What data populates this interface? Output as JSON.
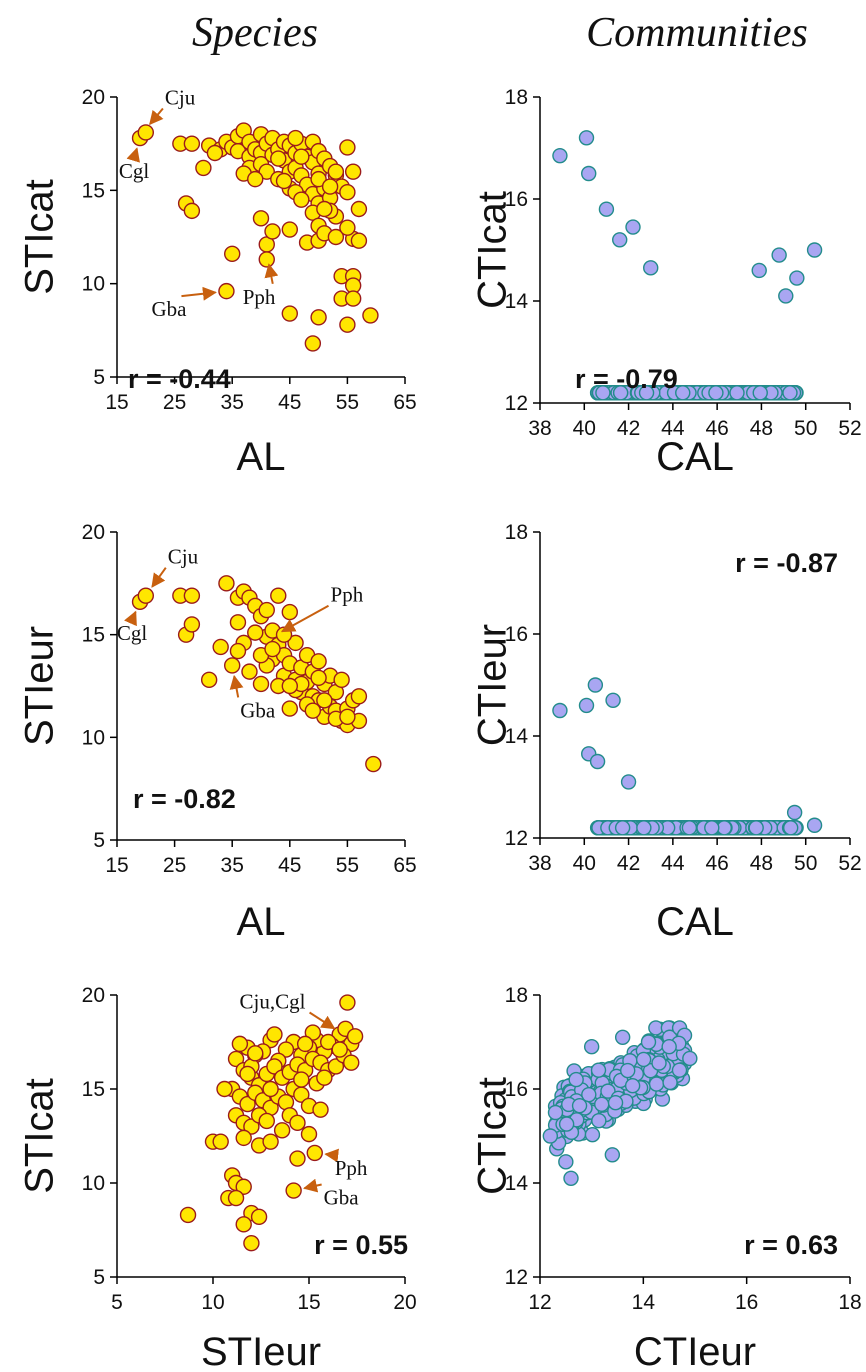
{
  "column_titles": {
    "species": "Species",
    "communities": "Communities"
  },
  "colors": {
    "species_fill": "#FFE600",
    "species_stroke": "#9B1B1B",
    "community_fill": "#A9A6F2",
    "community_stroke": "#238C8C",
    "arrow": "#C8600F"
  },
  "chart_data": [
    {
      "id": "p1",
      "type": "scatter",
      "column": "Species",
      "xlabel": "AL",
      "ylabel": "STIcat",
      "xlim": [
        15,
        65
      ],
      "ylim": [
        5,
        20
      ],
      "xticks": [
        15,
        25,
        35,
        45,
        55,
        65
      ],
      "yticks": [
        5,
        10,
        15,
        20
      ],
      "r_label": "r = -0.44",
      "annotations": [
        {
          "text": "Cju",
          "x": 19.5,
          "y": 18.1
        },
        {
          "text": "Cgl",
          "x": 19,
          "y": 17.8
        },
        {
          "text": "Gba",
          "x": 34,
          "y": 9.6
        },
        {
          "text": "Pph",
          "x": 41,
          "y": 11.6
        }
      ],
      "points": [
        [
          19,
          17.8
        ],
        [
          20,
          18.1
        ],
        [
          26,
          17.5
        ],
        [
          28,
          17.5
        ],
        [
          30,
          16.2
        ],
        [
          31,
          17.4
        ],
        [
          27,
          14.3
        ],
        [
          28,
          13.9
        ],
        [
          33,
          17.2
        ],
        [
          34,
          17.6
        ],
        [
          35,
          17.3
        ],
        [
          36,
          17.1
        ],
        [
          36,
          17.9
        ],
        [
          37,
          18.2
        ],
        [
          38,
          16.8
        ],
        [
          38,
          16.2
        ],
        [
          38,
          17.6
        ],
        [
          39,
          17.2
        ],
        [
          40,
          17.0
        ],
        [
          40,
          16.4
        ],
        [
          40,
          18.0
        ],
        [
          41,
          17.5
        ],
        [
          41,
          16.0
        ],
        [
          42,
          17.8
        ],
        [
          42,
          16.9
        ],
        [
          43,
          17.2
        ],
        [
          43,
          15.6
        ],
        [
          44,
          17.6
        ],
        [
          44,
          16.6
        ],
        [
          45,
          17.4
        ],
        [
          45,
          16.0
        ],
        [
          45,
          15.1
        ],
        [
          46,
          17.0
        ],
        [
          46,
          16.2
        ],
        [
          47,
          17.5
        ],
        [
          47,
          15.8
        ],
        [
          48,
          16.8
        ],
        [
          48,
          15.3
        ],
        [
          49,
          17.6
        ],
        [
          49,
          16.5
        ],
        [
          49,
          14.8
        ],
        [
          50,
          17.1
        ],
        [
          50,
          15.9
        ],
        [
          50,
          14.3
        ],
        [
          51,
          16.7
        ],
        [
          51,
          15.1
        ],
        [
          52,
          16.3
        ],
        [
          52,
          14.6
        ],
        [
          53,
          15.8
        ],
        [
          53,
          13.6
        ],
        [
          54,
          15.2
        ],
        [
          55,
          17.3
        ],
        [
          55,
          14.9
        ],
        [
          56,
          16.0
        ],
        [
          56,
          12.4
        ],
        [
          57,
          14.0
        ],
        [
          57,
          12.3
        ],
        [
          35,
          11.6
        ],
        [
          40,
          13.5
        ],
        [
          41,
          12.1
        ],
        [
          41,
          11.3
        ],
        [
          42,
          12.8
        ],
        [
          45,
          12.9
        ],
        [
          48,
          12.2
        ],
        [
          49,
          13.8
        ],
        [
          50,
          13.1
        ],
        [
          50,
          12.3
        ],
        [
          51,
          12.7
        ],
        [
          52,
          13.9
        ],
        [
          53,
          12.5
        ],
        [
          54,
          10.4
        ],
        [
          56,
          10.4
        ],
        [
          56,
          9.9
        ],
        [
          54,
          9.2
        ],
        [
          56,
          9.2
        ],
        [
          55,
          7.8
        ],
        [
          59,
          8.3
        ],
        [
          50,
          8.2
        ],
        [
          45,
          8.4
        ],
        [
          49,
          6.8
        ],
        [
          34,
          9.6
        ],
        [
          32,
          17.0
        ],
        [
          37,
          15.9
        ],
        [
          39,
          15.6
        ],
        [
          44,
          15.5
        ],
        [
          46,
          14.9
        ],
        [
          47,
          14.5
        ],
        [
          50,
          15.6
        ],
        [
          51,
          14.0
        ],
        [
          52,
          15.2
        ],
        [
          53,
          16.0
        ],
        [
          55,
          13.0
        ],
        [
          46,
          17.8
        ],
        [
          47,
          16.8
        ],
        [
          43,
          16.7
        ]
      ]
    },
    {
      "id": "p2",
      "type": "scatter",
      "column": "Communities",
      "xlabel": "CAL",
      "ylabel": "CTIcat",
      "xlim": [
        38,
        52
      ],
      "ylim": [
        12,
        18
      ],
      "xticks": [
        38,
        40,
        42,
        44,
        46,
        48,
        50,
        52
      ],
      "yticks": [
        12,
        14,
        16,
        18
      ],
      "r_label": "r = -0.79",
      "cloud": {
        "type": "band",
        "n": 480,
        "x_range": [
          40.6,
          49.6
        ],
        "line": [
          17.8,
          -0.28
        ],
        "spread": 0.55
      },
      "points": [
        [
          38.9,
          16.85
        ],
        [
          40.1,
          17.2
        ],
        [
          43.0,
          14.65
        ],
        [
          49.1,
          14.1
        ],
        [
          49.6,
          14.45
        ],
        [
          50.4,
          15.0
        ],
        [
          41.0,
          15.8
        ],
        [
          40.2,
          16.5
        ],
        [
          41.6,
          15.2
        ],
        [
          42.2,
          15.45
        ],
        [
          47.9,
          14.6
        ],
        [
          48.8,
          14.9
        ]
      ]
    },
    {
      "id": "p3",
      "type": "scatter",
      "column": "Species",
      "xlabel": "AL",
      "ylabel": "STIeur",
      "xlim": [
        15,
        65
      ],
      "ylim": [
        5,
        20
      ],
      "xticks": [
        15,
        25,
        35,
        45,
        55,
        65
      ],
      "yticks": [
        5,
        10,
        15,
        20
      ],
      "r_label": "r = -0.82",
      "annotations": [
        {
          "text": "Cju",
          "x": 20,
          "y": 16.9
        },
        {
          "text": "Cgl",
          "x": 19,
          "y": 16.6
        },
        {
          "text": "Gba",
          "x": 35,
          "y": 13.5
        },
        {
          "text": "Pph",
          "x": 42,
          "y": 14.9
        }
      ],
      "points": [
        [
          19,
          16.6
        ],
        [
          20,
          16.9
        ],
        [
          26,
          16.9
        ],
        [
          28,
          16.9
        ],
        [
          27,
          15.0
        ],
        [
          28,
          15.5
        ],
        [
          31,
          12.8
        ],
        [
          33,
          14.4
        ],
        [
          34,
          17.5
        ],
        [
          35,
          13.5
        ],
        [
          36,
          15.6
        ],
        [
          36,
          16.8
        ],
        [
          37,
          17.1
        ],
        [
          37,
          14.6
        ],
        [
          38,
          16.8
        ],
        [
          38,
          13.2
        ],
        [
          39,
          16.4
        ],
        [
          40,
          15.9
        ],
        [
          40,
          12.6
        ],
        [
          41,
          16.2
        ],
        [
          41,
          14.9
        ],
        [
          42,
          15.2
        ],
        [
          42,
          13.8
        ],
        [
          43,
          16.9
        ],
        [
          43,
          14.5
        ],
        [
          44,
          14.0
        ],
        [
          44,
          13.0
        ],
        [
          45,
          16.1
        ],
        [
          45,
          13.6
        ],
        [
          45,
          11.4
        ],
        [
          46,
          14.6
        ],
        [
          46,
          12.8
        ],
        [
          47,
          13.4
        ],
        [
          47,
          12.2
        ],
        [
          48,
          14.0
        ],
        [
          48,
          12.7
        ],
        [
          49,
          13.2
        ],
        [
          49,
          12.0
        ],
        [
          50,
          13.7
        ],
        [
          50,
          11.8
        ],
        [
          51,
          12.6
        ],
        [
          51,
          11.0
        ],
        [
          52,
          13.0
        ],
        [
          52,
          11.5
        ],
        [
          53,
          12.2
        ],
        [
          53,
          11.3
        ],
        [
          54,
          12.8
        ],
        [
          54,
          10.8
        ],
        [
          55,
          11.4
        ],
        [
          55,
          10.6
        ],
        [
          56,
          11.8
        ],
        [
          57,
          12.0
        ],
        [
          57,
          10.8
        ],
        [
          59.5,
          8.7
        ],
        [
          39,
          15.1
        ],
        [
          41,
          13.5
        ],
        [
          43,
          12.5
        ],
        [
          46,
          12.3
        ],
        [
          48,
          11.6
        ],
        [
          50,
          12.9
        ],
        [
          36,
          14.2
        ],
        [
          40,
          14.0
        ],
        [
          44,
          15.0
        ],
        [
          47,
          12.6
        ],
        [
          49,
          11.3
        ],
        [
          51,
          11.8
        ],
        [
          53,
          10.9
        ],
        [
          55,
          11.0
        ],
        [
          42,
          14.3
        ],
        [
          45,
          12.5
        ]
      ]
    },
    {
      "id": "p4",
      "type": "scatter",
      "column": "Communities",
      "xlabel": "CAL",
      "ylabel": "CTIeur",
      "xlim": [
        38,
        52
      ],
      "ylim": [
        12,
        18
      ],
      "xticks": [
        38,
        40,
        42,
        44,
        46,
        48,
        50,
        52
      ],
      "yticks": [
        12,
        14,
        16,
        18
      ],
      "r_label": "r = -0.87",
      "cloud": {
        "type": "band",
        "n": 480,
        "x_range": [
          40.6,
          49.6
        ],
        "line": [
          16.2,
          -0.245
        ],
        "spread": 0.32
      },
      "points": [
        [
          38.9,
          14.5
        ],
        [
          40.1,
          14.6
        ],
        [
          40.5,
          15.0
        ],
        [
          40.2,
          13.65
        ],
        [
          40.6,
          13.5
        ],
        [
          50.4,
          12.25
        ],
        [
          49.5,
          12.5
        ],
        [
          41.3,
          14.7
        ],
        [
          42.0,
          13.1
        ]
      ]
    },
    {
      "id": "p5",
      "type": "scatter",
      "column": "Species",
      "xlabel": "STIeur",
      "ylabel": "STIcat",
      "xlim": [
        5,
        20
      ],
      "ylim": [
        5,
        20
      ],
      "xticks": [
        5,
        10,
        15,
        20
      ],
      "yticks": [
        5,
        10,
        15,
        20
      ],
      "r_label": "r = 0.55",
      "annotations": [
        {
          "text": "Cju,Cgl",
          "x": 16.8,
          "y": 17.9
        },
        {
          "text": "Pph",
          "x": 15.3,
          "y": 11.6
        },
        {
          "text": "Gba",
          "x": 14.2,
          "y": 9.6
        }
      ],
      "points": [
        [
          17,
          19.6
        ],
        [
          16.6,
          17.9
        ],
        [
          16.9,
          18.2
        ],
        [
          17.2,
          17.4
        ],
        [
          17.4,
          17.8
        ],
        [
          16.2,
          17.3
        ],
        [
          15.8,
          17.0
        ],
        [
          15.4,
          17.6
        ],
        [
          15.0,
          17.2
        ],
        [
          14.6,
          16.8
        ],
        [
          14.2,
          17.5
        ],
        [
          13.8,
          17.1
        ],
        [
          13.4,
          16.5
        ],
        [
          13.0,
          17.6
        ],
        [
          12.6,
          17.0
        ],
        [
          12.2,
          16.8
        ],
        [
          11.8,
          17.2
        ],
        [
          11.4,
          17.4
        ],
        [
          11.2,
          16.6
        ],
        [
          11.6,
          16.0
        ],
        [
          12.0,
          15.6
        ],
        [
          12.4,
          15.2
        ],
        [
          12.8,
          15.8
        ],
        [
          13.2,
          16.2
        ],
        [
          13.6,
          15.6
        ],
        [
          14.0,
          15.9
        ],
        [
          14.4,
          16.3
        ],
        [
          14.8,
          16.0
        ],
        [
          15.2,
          16.6
        ],
        [
          15.6,
          16.4
        ],
        [
          16.0,
          16.0
        ],
        [
          16.4,
          16.2
        ],
        [
          16.8,
          16.8
        ],
        [
          17.2,
          16.4
        ],
        [
          11.0,
          15.0
        ],
        [
          11.4,
          14.6
        ],
        [
          11.8,
          14.2
        ],
        [
          12.2,
          14.8
        ],
        [
          12.6,
          14.4
        ],
        [
          13.0,
          14.0
        ],
        [
          13.4,
          14.6
        ],
        [
          13.8,
          14.3
        ],
        [
          14.2,
          15.0
        ],
        [
          14.6,
          14.7
        ],
        [
          15.0,
          14.1
        ],
        [
          15.4,
          15.3
        ],
        [
          15.8,
          15.6
        ],
        [
          11.2,
          13.6
        ],
        [
          11.6,
          13.2
        ],
        [
          12.0,
          13.0
        ],
        [
          12.4,
          13.6
        ],
        [
          12.8,
          13.3
        ],
        [
          13.6,
          12.8
        ],
        [
          14.0,
          13.6
        ],
        [
          14.4,
          13.2
        ],
        [
          15.0,
          12.6
        ],
        [
          15.6,
          13.9
        ],
        [
          10.0,
          12.2
        ],
        [
          10.4,
          12.2
        ],
        [
          11.6,
          12.4
        ],
        [
          12.4,
          12.0
        ],
        [
          13.0,
          12.2
        ],
        [
          14.4,
          11.3
        ],
        [
          15.3,
          11.6
        ],
        [
          11.0,
          10.4
        ],
        [
          11.2,
          10.0
        ],
        [
          11.6,
          9.8
        ],
        [
          10.8,
          9.2
        ],
        [
          11.2,
          9.2
        ],
        [
          12.0,
          8.4
        ],
        [
          12.4,
          8.2
        ],
        [
          11.6,
          7.8
        ],
        [
          12.0,
          6.8
        ],
        [
          8.7,
          8.3
        ],
        [
          14.2,
          9.6
        ],
        [
          10.6,
          15.0
        ],
        [
          13.2,
          17.9
        ],
        [
          15.2,
          18.0
        ],
        [
          16.0,
          17.5
        ],
        [
          12.0,
          16.2
        ],
        [
          14.6,
          15.5
        ],
        [
          13.0,
          15.0
        ],
        [
          12.2,
          16.9
        ],
        [
          14.8,
          17.4
        ],
        [
          16.6,
          17.1
        ],
        [
          11.8,
          15.8
        ]
      ]
    },
    {
      "id": "p6",
      "type": "scatter",
      "column": "Communities",
      "xlabel": "CTIeur",
      "ylabel": "CTIcat",
      "xlim": [
        12,
        18
      ],
      "ylim": [
        12,
        18
      ],
      "xticks": [
        12,
        14,
        16,
        18
      ],
      "yticks": [
        12,
        14,
        16,
        18
      ],
      "r_label": "r = 0.63",
      "cloud": {
        "type": "blob",
        "n": 480,
        "x_range": [
          12.3,
          14.8
        ],
        "line": [
          8.5,
          0.56
        ],
        "spread": 0.55
      },
      "points": [
        [
          12.2,
          15.0
        ],
        [
          12.5,
          14.45
        ],
        [
          12.6,
          14.1
        ],
        [
          13.4,
          14.6
        ],
        [
          14.9,
          16.65
        ],
        [
          14.7,
          16.4
        ],
        [
          12.3,
          15.5
        ],
        [
          13.6,
          17.1
        ],
        [
          14.1,
          17.0
        ],
        [
          14.5,
          16.9
        ],
        [
          12.7,
          16.2
        ],
        [
          13.0,
          16.9
        ]
      ]
    }
  ]
}
